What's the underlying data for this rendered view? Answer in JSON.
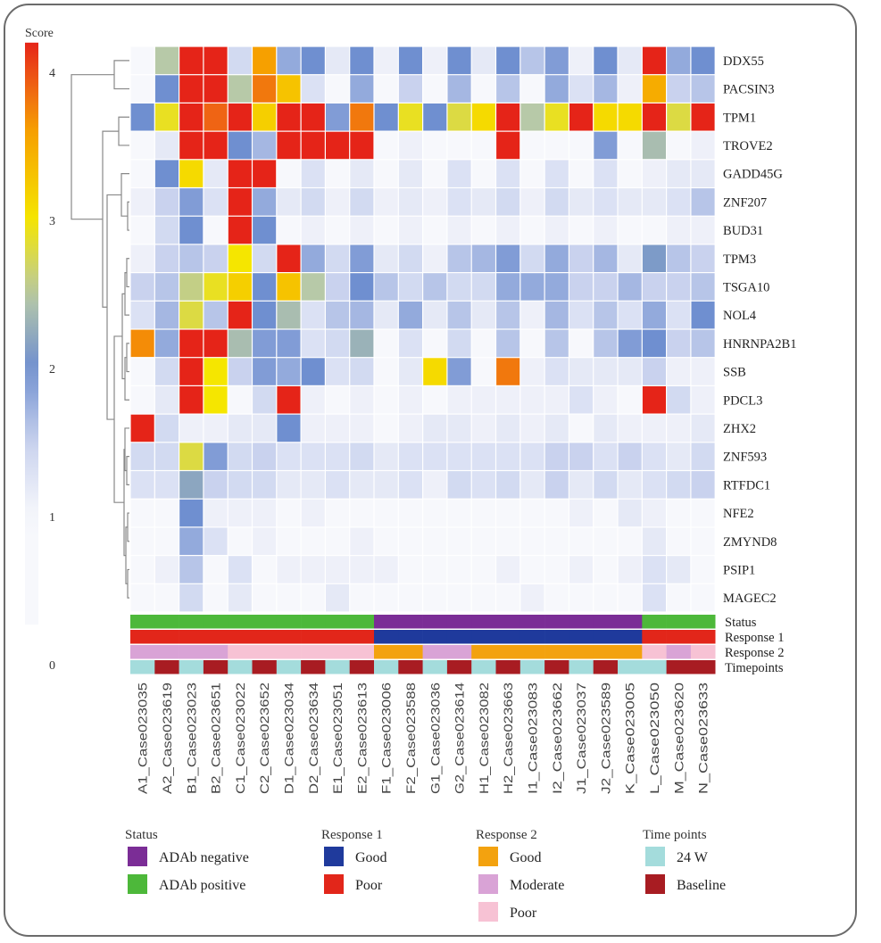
{
  "chart_data": {
    "type": "heatmap",
    "colorbar": {
      "title": "Score",
      "ticks": [
        "0",
        "1",
        "2",
        "3",
        "4"
      ],
      "range": [
        0,
        4.2
      ],
      "colors": {
        "low": "#f7f8fc",
        "mid_low": "#c9d2ee",
        "mid": "#6f8fd0",
        "mid_high": "#b7c9a8",
        "high_yellow": "#f5e600",
        "orange": "#f6a000",
        "high": "#e52418"
      }
    },
    "rows": [
      "DDX55",
      "PACSIN3",
      "TPM1",
      "TROVE2",
      "GADD45G",
      "ZNF207",
      "BUD31",
      "TPM3",
      "TSGA10",
      "NOL4",
      "HNRNPA2B1",
      "SSB",
      "PDCL3",
      "ZHX2",
      "ZNF593",
      "RTFDC1",
      "NFE2",
      "ZMYND8",
      "PSIP1",
      "MAGEC2"
    ],
    "columns": [
      "A1_Case023035",
      "A2_Case023619",
      "B1_Case023023",
      "B2_Case023651",
      "C1_Case023022",
      "C2_Case023652",
      "D1_Case023034",
      "D2_Case023634",
      "E1_Case023051",
      "E2_Case023613",
      "F1_Case023006",
      "F2_Case023588",
      "G1_Case023036",
      "G2_Case023614",
      "H1_Case023082",
      "H2_Case023663",
      "I1_Case023083",
      "I2_Case023662",
      "J1_Case023037",
      "J2_Case023589",
      "K_Case023005",
      "L_Case023050",
      "M_Case023620",
      "N_Case023633"
    ],
    "values": [
      [
        1.0,
        2.5,
        4.2,
        4.2,
        1.4,
        3.6,
        1.8,
        2.0,
        1.2,
        2.0,
        1.1,
        2.0,
        1.1,
        2.0,
        1.2,
        2.0,
        1.6,
        1.9,
        1.1,
        2.0,
        1.2,
        4.2,
        1.8,
        2.0
      ],
      [
        1.0,
        2.0,
        4.2,
        4.2,
        2.5,
        3.8,
        3.3,
        1.3,
        1.0,
        1.8,
        1.0,
        1.5,
        1.0,
        1.7,
        1.0,
        1.6,
        1.0,
        1.8,
        1.3,
        1.7,
        1.1,
        3.5,
        1.5,
        1.6
      ],
      [
        2.0,
        2.9,
        4.2,
        3.9,
        4.2,
        3.2,
        4.2,
        4.2,
        1.9,
        3.8,
        2.0,
        2.9,
        2.0,
        2.8,
        3.1,
        4.2,
        2.5,
        2.9,
        4.2,
        3.1,
        3.1,
        4.2,
        2.8,
        4.2
      ],
      [
        1.0,
        1.2,
        4.2,
        4.2,
        2.0,
        1.7,
        4.2,
        4.2,
        4.2,
        4.2,
        1.0,
        1.1,
        1.0,
        1.0,
        1.0,
        4.2,
        1.0,
        1.0,
        1.0,
        1.9,
        1.0,
        2.4,
        1.0,
        1.1
      ],
      [
        1.0,
        2.0,
        3.1,
        1.2,
        4.2,
        4.2,
        1.0,
        1.3,
        1.0,
        1.2,
        1.0,
        1.2,
        1.0,
        1.3,
        1.0,
        1.3,
        1.0,
        1.3,
        1.0,
        1.3,
        1.0,
        1.1,
        1.2,
        1.2
      ],
      [
        1.1,
        1.5,
        1.9,
        1.3,
        4.2,
        1.8,
        1.2,
        1.4,
        1.1,
        1.4,
        1.1,
        1.2,
        1.1,
        1.3,
        1.2,
        1.4,
        1.1,
        1.4,
        1.2,
        1.3,
        1.2,
        1.2,
        1.3,
        1.6
      ],
      [
        1.0,
        1.4,
        2.0,
        1.0,
        4.2,
        2.0,
        1.0,
        1.1,
        1.0,
        1.1,
        1.0,
        1.1,
        1.0,
        1.1,
        1.0,
        1.1,
        1.0,
        1.1,
        1.0,
        1.1,
        1.0,
        1.0,
        1.1,
        1.1
      ],
      [
        1.1,
        1.5,
        1.6,
        1.5,
        3.0,
        1.4,
        4.2,
        1.8,
        1.4,
        1.9,
        1.2,
        1.4,
        1.1,
        1.6,
        1.7,
        1.9,
        1.4,
        1.8,
        1.5,
        1.7,
        1.2,
        2.1,
        1.6,
        1.5
      ],
      [
        1.5,
        1.6,
        2.6,
        2.9,
        3.2,
        2.0,
        3.3,
        2.5,
        1.5,
        2.0,
        1.6,
        1.4,
        1.6,
        1.4,
        1.4,
        1.8,
        1.8,
        1.8,
        1.5,
        1.5,
        1.7,
        1.5,
        1.5,
        1.6
      ],
      [
        1.3,
        1.7,
        2.8,
        1.6,
        4.2,
        2.0,
        2.4,
        1.3,
        1.6,
        1.7,
        1.2,
        1.8,
        1.2,
        1.6,
        1.2,
        1.6,
        1.1,
        1.7,
        1.3,
        1.6,
        1.3,
        1.8,
        1.3,
        2.0
      ],
      [
        3.7,
        1.8,
        4.2,
        4.2,
        2.4,
        1.9,
        1.9,
        1.3,
        1.4,
        2.3,
        1.0,
        1.3,
        1.0,
        1.4,
        1.0,
        1.6,
        1.0,
        1.6,
        1.0,
        1.6,
        1.9,
        2.0,
        1.5,
        1.6
      ],
      [
        1.0,
        1.4,
        4.2,
        3.0,
        1.5,
        1.9,
        1.8,
        2.0,
        1.3,
        1.4,
        1.0,
        1.2,
        3.1,
        1.9,
        1.0,
        3.8,
        1.1,
        1.3,
        1.2,
        1.2,
        1.2,
        1.5,
        1.1,
        1.1
      ],
      [
        1.0,
        1.2,
        4.2,
        3.0,
        1.0,
        1.4,
        4.2,
        1.1,
        1.0,
        1.1,
        1.0,
        1.1,
        1.0,
        1.1,
        1.1,
        1.1,
        1.1,
        1.1,
        1.3,
        1.1,
        1.0,
        4.2,
        1.4,
        1.1
      ],
      [
        4.2,
        1.4,
        1.1,
        1.1,
        1.2,
        1.2,
        2.0,
        1.1,
        1.1,
        1.1,
        1.0,
        1.1,
        1.2,
        1.2,
        1.1,
        1.2,
        1.1,
        1.2,
        1.0,
        1.2,
        1.1,
        1.1,
        1.1,
        1.2
      ],
      [
        1.4,
        1.4,
        2.8,
        1.9,
        1.4,
        1.5,
        1.3,
        1.3,
        1.3,
        1.4,
        1.2,
        1.3,
        1.3,
        1.3,
        1.3,
        1.3,
        1.3,
        1.5,
        1.5,
        1.3,
        1.5,
        1.3,
        1.2,
        1.4
      ],
      [
        1.3,
        1.3,
        2.2,
        1.5,
        1.4,
        1.4,
        1.2,
        1.2,
        1.3,
        1.2,
        1.2,
        1.3,
        1.1,
        1.4,
        1.3,
        1.4,
        1.2,
        1.5,
        1.2,
        1.4,
        1.2,
        1.3,
        1.4,
        1.5
      ],
      [
        1.0,
        1.0,
        2.0,
        1.1,
        1.1,
        1.1,
        1.0,
        1.1,
        1.0,
        1.0,
        1.0,
        1.0,
        1.0,
        1.0,
        1.0,
        1.0,
        1.0,
        1.0,
        1.1,
        1.0,
        1.2,
        1.1,
        1.0,
        1.0
      ],
      [
        1.0,
        1.0,
        1.8,
        1.3,
        1.0,
        1.1,
        1.0,
        1.0,
        1.0,
        1.1,
        1.0,
        1.0,
        1.0,
        1.0,
        1.0,
        1.0,
        1.0,
        1.0,
        1.0,
        1.0,
        1.0,
        1.2,
        1.0,
        1.0
      ],
      [
        1.0,
        1.1,
        1.6,
        1.0,
        1.3,
        1.0,
        1.1,
        1.1,
        1.1,
        1.1,
        1.1,
        1.0,
        1.0,
        1.0,
        1.0,
        1.1,
        1.0,
        1.0,
        1.1,
        1.0,
        1.1,
        1.3,
        1.2,
        1.0
      ],
      [
        1.0,
        1.0,
        1.4,
        1.0,
        1.2,
        1.0,
        1.0,
        1.0,
        1.2,
        1.0,
        1.0,
        1.0,
        1.0,
        1.0,
        1.0,
        1.0,
        1.1,
        1.0,
        1.0,
        1.0,
        1.0,
        1.3,
        1.0,
        1.0
      ]
    ],
    "row_dendrogram": true,
    "annotation_tracks": [
      {
        "name": "Status",
        "values": [
          "ADAb positive",
          "ADAb positive",
          "ADAb positive",
          "ADAb positive",
          "ADAb positive",
          "ADAb positive",
          "ADAb positive",
          "ADAb positive",
          "ADAb positive",
          "ADAb positive",
          "ADAb negative",
          "ADAb negative",
          "ADAb negative",
          "ADAb negative",
          "ADAb negative",
          "ADAb negative",
          "ADAb negative",
          "ADAb negative",
          "ADAb negative",
          "ADAb negative",
          "ADAb negative",
          "ADAb positive",
          "ADAb positive",
          "ADAb positive"
        ]
      },
      {
        "name": "Response 1",
        "values": [
          "Poor",
          "Poor",
          "Poor",
          "Poor",
          "Poor",
          "Poor",
          "Poor",
          "Poor",
          "Poor",
          "Poor",
          "Good",
          "Good",
          "Good",
          "Good",
          "Good",
          "Good",
          "Good",
          "Good",
          "Good",
          "Good",
          "Good",
          "Poor",
          "Poor",
          "Poor"
        ]
      },
      {
        "name": "Response 2",
        "values": [
          "Moderate",
          "Moderate",
          "Moderate",
          "Moderate",
          "Poor",
          "Poor",
          "Poor",
          "Poor",
          "Poor",
          "Poor",
          "Good",
          "Good",
          "Moderate",
          "Moderate",
          "Good",
          "Good",
          "Good",
          "Good",
          "Good",
          "Good",
          "Good",
          "Poor",
          "Moderate",
          "Poor"
        ]
      },
      {
        "name": "Timepoints",
        "values": [
          "24 W",
          "Baseline",
          "24 W",
          "Baseline",
          "24 W",
          "Baseline",
          "24 W",
          "Baseline",
          "24 W",
          "Baseline",
          "24 W",
          "Baseline",
          "24 W",
          "Baseline",
          "24 W",
          "Baseline",
          "24 W",
          "Baseline",
          "24 W",
          "Baseline",
          "24 W",
          "24 W",
          "Baseline",
          "Baseline"
        ]
      }
    ],
    "legend": [
      {
        "title": "Status",
        "items": [
          {
            "label": "ADAb negative",
            "color": "#7b2d96"
          },
          {
            "label": "ADAb positive",
            "color": "#4db83a"
          }
        ]
      },
      {
        "title": "Response 1",
        "items": [
          {
            "label": "Good",
            "color": "#1f3a9c"
          },
          {
            "label": "Poor",
            "color": "#e2261a"
          }
        ]
      },
      {
        "title": "Response 2",
        "items": [
          {
            "label": "Good",
            "color": "#f3a20f"
          },
          {
            "label": "Moderate",
            "color": "#d9a3d6"
          },
          {
            "label": "Poor",
            "color": "#f7c2d4"
          }
        ]
      },
      {
        "title": "Time points",
        "items": [
          {
            "label": "24 W",
            "color": "#a4dcdc"
          },
          {
            "label": "Baseline",
            "color": "#a81c22"
          }
        ]
      }
    ],
    "legend_placement": "bottom"
  }
}
